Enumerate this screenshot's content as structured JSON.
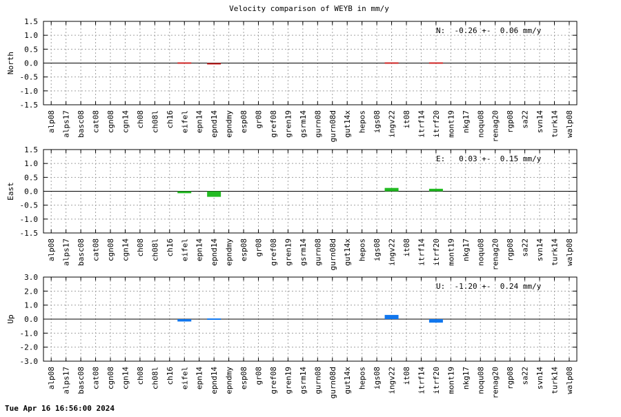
{
  "title": "Velocity comparison of WEYB in mm/y",
  "footer": "Tue Apr 16 16:56:00 2024",
  "chart_data": [
    {
      "type": "bar",
      "ylabel": "North",
      "ylim": [
        -1.5,
        1.5
      ],
      "yticks": [
        "1.5",
        "1.0",
        "0.5",
        "0.0",
        "-0.5",
        "-1.0",
        "-1.5"
      ],
      "ytick_values": [
        1.5,
        1.0,
        0.5,
        0.0,
        -0.5,
        -1.0,
        -1.5
      ],
      "annotation": "N:  -0.26 +-  0.06 mm/y",
      "color": "#cc2222",
      "grid": true,
      "categories": [
        "alp08",
        "alps17",
        "basc08",
        "cat08",
        "cgn08",
        "cgn14",
        "ch08",
        "ch08l",
        "ch16",
        "eifel",
        "epn14",
        "epnd14",
        "epndmy",
        "esp08",
        "gr08",
        "gref08",
        "gren19",
        "gsrm14",
        "gurn08",
        "gurn08d",
        "gut14x",
        "hepos",
        "igs08",
        "ingv22",
        "it08",
        "itrf14",
        "itrf20",
        "mont19",
        "nkg17",
        "noqu08",
        "renag20",
        "rgp08",
        "sa22",
        "svn14",
        "turk14",
        "walp08"
      ],
      "values": [
        null,
        null,
        null,
        null,
        null,
        null,
        null,
        null,
        null,
        0.04,
        null,
        -0.05,
        null,
        null,
        null,
        null,
        null,
        null,
        null,
        null,
        null,
        null,
        null,
        -0.01,
        null,
        null,
        0.01,
        null,
        null,
        null,
        null,
        null,
        null,
        null,
        null,
        null
      ]
    },
    {
      "type": "bar",
      "ylabel": "East",
      "ylim": [
        -1.5,
        1.5
      ],
      "yticks": [
        "1.5",
        "1.0",
        "0.5",
        "0.0",
        "-0.5",
        "-1.0",
        "-1.5"
      ],
      "ytick_values": [
        1.5,
        1.0,
        0.5,
        0.0,
        -0.5,
        -1.0,
        -1.5
      ],
      "annotation": "E:   0.03 +-  0.15 mm/y",
      "color": "#22bb22",
      "grid": true,
      "categories": [
        "alp08",
        "alps17",
        "basc08",
        "cat08",
        "cgn08",
        "cgn14",
        "ch08",
        "ch08l",
        "ch16",
        "eifel",
        "epn14",
        "epnd14",
        "epndmy",
        "esp08",
        "gr08",
        "gref08",
        "gren19",
        "gsrm14",
        "gurn08",
        "gurn08d",
        "gut14x",
        "hepos",
        "igs08",
        "ingv22",
        "it08",
        "itrf14",
        "itrf20",
        "mont19",
        "nkg17",
        "noqu08",
        "renag20",
        "rgp08",
        "sa22",
        "svn14",
        "turk14",
        "walp08"
      ],
      "values": [
        null,
        null,
        null,
        null,
        null,
        null,
        null,
        null,
        null,
        -0.07,
        null,
        -0.2,
        null,
        null,
        null,
        null,
        null,
        null,
        null,
        null,
        null,
        null,
        null,
        0.12,
        null,
        null,
        0.09,
        null,
        null,
        null,
        null,
        null,
        null,
        null,
        null,
        null
      ]
    },
    {
      "type": "bar",
      "ylabel": "Up",
      "ylim": [
        -3.0,
        3.0
      ],
      "yticks": [
        "3.0",
        "2.0",
        "1.0",
        "0.0",
        "-1.0",
        "-2.0",
        "-3.0"
      ],
      "ytick_values": [
        3.0,
        2.0,
        1.0,
        0.0,
        -1.0,
        -2.0,
        -3.0
      ],
      "annotation": "U:  -1.20 +-  0.24 mm/y",
      "color": "#1177ee",
      "grid": true,
      "categories": [
        "alp08",
        "alps17",
        "basc08",
        "cat08",
        "cgn08",
        "cgn14",
        "ch08",
        "ch08l",
        "ch16",
        "eifel",
        "epn14",
        "epnd14",
        "epndmy",
        "esp08",
        "gr08",
        "gref08",
        "gren19",
        "gsrm14",
        "gurn08",
        "gurn08d",
        "gut14x",
        "hepos",
        "igs08",
        "ingv22",
        "it08",
        "itrf14",
        "itrf20",
        "mont19",
        "nkg17",
        "noqu08",
        "renag20",
        "rgp08",
        "sa22",
        "svn14",
        "turk14",
        "walp08"
      ],
      "values": [
        null,
        null,
        null,
        null,
        null,
        null,
        null,
        null,
        null,
        -0.17,
        null,
        0.08,
        null,
        null,
        null,
        null,
        null,
        null,
        null,
        null,
        null,
        null,
        null,
        0.3,
        null,
        null,
        -0.25,
        null,
        null,
        null,
        null,
        null,
        null,
        null,
        null,
        null
      ]
    }
  ]
}
